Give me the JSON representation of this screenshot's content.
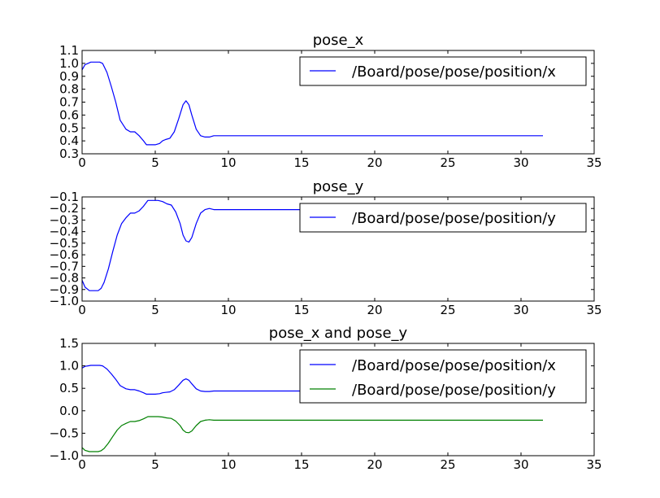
{
  "colors": {
    "background": "#ffffff",
    "axes_edge": "#000000",
    "series_x": "#0000ff",
    "series_y": "#008000"
  },
  "chart_data": [
    {
      "type": "line",
      "title": "pose_x",
      "xlim": [
        0,
        35
      ],
      "ylim": [
        0.3,
        1.1
      ],
      "xticks": [
        "0",
        "5",
        "10",
        "15",
        "20",
        "25",
        "30",
        "35"
      ],
      "yticks": [
        "0.3",
        "0.4",
        "0.5",
        "0.6",
        "0.7",
        "0.8",
        "0.9",
        "1.0",
        "1.1"
      ],
      "grid": false,
      "legend_position": "top-right",
      "series": [
        {
          "name": "/Board/pose/pose/position/x",
          "color": "#0000ff",
          "x": [
            0,
            0.2,
            0.4,
            0.6,
            1.0,
            1.2,
            1.4,
            1.7,
            2.0,
            2.3,
            2.6,
            3.0,
            3.3,
            3.6,
            3.9,
            4.2,
            4.4,
            4.6,
            5.0,
            5.3,
            5.5,
            5.7,
            6.0,
            6.3,
            6.6,
            6.9,
            7.1,
            7.3,
            7.5,
            7.8,
            8.1,
            8.4,
            8.7,
            9.0,
            10,
            15,
            20,
            25,
            30,
            31.5
          ],
          "y": [
            0.95,
            0.99,
            1.0,
            1.01,
            1.01,
            1.01,
            1.0,
            0.93,
            0.82,
            0.7,
            0.56,
            0.49,
            0.47,
            0.47,
            0.44,
            0.4,
            0.37,
            0.37,
            0.37,
            0.38,
            0.4,
            0.41,
            0.42,
            0.47,
            0.57,
            0.68,
            0.71,
            0.68,
            0.6,
            0.49,
            0.44,
            0.43,
            0.43,
            0.44,
            0.44,
            0.44,
            0.44,
            0.44,
            0.44,
            0.44
          ]
        }
      ]
    },
    {
      "type": "line",
      "title": "pose_y",
      "xlim": [
        0,
        35
      ],
      "ylim": [
        -1.0,
        -0.1
      ],
      "xticks": [
        "0",
        "5",
        "10",
        "15",
        "20",
        "25",
        "30",
        "35"
      ],
      "yticks": [
        "−1.0",
        "−0.9",
        "−0.8",
        "−0.7",
        "−0.6",
        "−0.5",
        "−0.4",
        "−0.3",
        "−0.2",
        "−0.1"
      ],
      "grid": false,
      "legend_position": "top-right",
      "series": [
        {
          "name": "/Board/pose/pose/position/y",
          "color": "#0000ff",
          "x": [
            0,
            0.2,
            0.5,
            0.8,
            1.1,
            1.3,
            1.5,
            1.8,
            2.1,
            2.4,
            2.7,
            3.0,
            3.3,
            3.6,
            3.9,
            4.2,
            4.5,
            4.8,
            5.2,
            5.5,
            5.8,
            6.1,
            6.4,
            6.7,
            6.9,
            7.1,
            7.3,
            7.5,
            7.8,
            8.1,
            8.4,
            8.7,
            9.0,
            10,
            15,
            20,
            25,
            30,
            31.5
          ],
          "y": [
            -0.82,
            -0.88,
            -0.91,
            -0.91,
            -0.91,
            -0.89,
            -0.84,
            -0.72,
            -0.57,
            -0.43,
            -0.33,
            -0.28,
            -0.24,
            -0.24,
            -0.22,
            -0.18,
            -0.13,
            -0.13,
            -0.13,
            -0.14,
            -0.16,
            -0.17,
            -0.23,
            -0.33,
            -0.43,
            -0.48,
            -0.49,
            -0.45,
            -0.33,
            -0.24,
            -0.21,
            -0.2,
            -0.21,
            -0.21,
            -0.21,
            -0.21,
            -0.21,
            -0.21,
            -0.21
          ]
        }
      ]
    },
    {
      "type": "line",
      "title": "pose_x and pose_y",
      "xlim": [
        0,
        35
      ],
      "ylim": [
        -1.0,
        1.5
      ],
      "xticks": [
        "0",
        "5",
        "10",
        "15",
        "20",
        "25",
        "30",
        "35"
      ],
      "yticks": [
        "−1.0",
        "−0.5",
        "0.0",
        "0.5",
        "1.0",
        "1.5"
      ],
      "grid": false,
      "legend_position": "top-right",
      "series": [
        {
          "name": "/Board/pose/pose/position/x",
          "color": "#0000ff",
          "x": [
            0,
            0.2,
            0.4,
            0.6,
            1.0,
            1.2,
            1.4,
            1.7,
            2.0,
            2.3,
            2.6,
            3.0,
            3.3,
            3.6,
            3.9,
            4.2,
            4.4,
            4.6,
            5.0,
            5.3,
            5.5,
            5.7,
            6.0,
            6.3,
            6.6,
            6.9,
            7.1,
            7.3,
            7.5,
            7.8,
            8.1,
            8.4,
            8.7,
            9.0,
            10,
            15,
            20,
            25,
            30,
            31.5
          ],
          "y": [
            0.95,
            0.99,
            1.0,
            1.01,
            1.01,
            1.01,
            1.0,
            0.93,
            0.82,
            0.7,
            0.56,
            0.49,
            0.47,
            0.47,
            0.44,
            0.4,
            0.37,
            0.37,
            0.37,
            0.38,
            0.4,
            0.41,
            0.42,
            0.47,
            0.57,
            0.68,
            0.71,
            0.68,
            0.6,
            0.49,
            0.44,
            0.43,
            0.43,
            0.44,
            0.44,
            0.44,
            0.44,
            0.44,
            0.44,
            0.44
          ]
        },
        {
          "name": "/Board/pose/pose/position/y",
          "color": "#008000",
          "x": [
            0,
            0.2,
            0.5,
            0.8,
            1.1,
            1.3,
            1.5,
            1.8,
            2.1,
            2.4,
            2.7,
            3.0,
            3.3,
            3.6,
            3.9,
            4.2,
            4.5,
            4.8,
            5.2,
            5.5,
            5.8,
            6.1,
            6.4,
            6.7,
            6.9,
            7.1,
            7.3,
            7.5,
            7.8,
            8.1,
            8.4,
            8.7,
            9.0,
            10,
            15,
            20,
            25,
            30,
            31.5
          ],
          "y": [
            -0.82,
            -0.88,
            -0.91,
            -0.91,
            -0.91,
            -0.89,
            -0.84,
            -0.72,
            -0.57,
            -0.43,
            -0.33,
            -0.28,
            -0.24,
            -0.24,
            -0.22,
            -0.18,
            -0.13,
            -0.13,
            -0.13,
            -0.14,
            -0.16,
            -0.17,
            -0.23,
            -0.33,
            -0.43,
            -0.48,
            -0.49,
            -0.45,
            -0.33,
            -0.24,
            -0.21,
            -0.2,
            -0.21,
            -0.21,
            -0.21,
            -0.21,
            -0.21,
            -0.21,
            -0.21
          ]
        }
      ]
    }
  ]
}
